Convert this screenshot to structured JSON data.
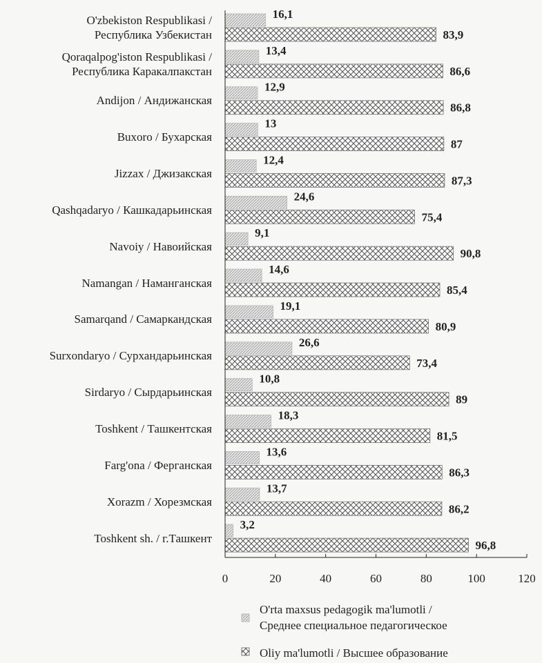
{
  "chart_data": {
    "type": "hbar",
    "categories": [
      "O'zbekiston Respublikasi /\nРеспублика Узбекистан",
      "Qoraqalpog'iston Respublikasi /\nРеспублика Каракалпакстан",
      "Andijon / Андижанская",
      "Buxoro / Бухарская",
      "Jizzax / Джизакская",
      "Qashqadaryo / Кашкадарьинская",
      "Navoiy / Навоийская",
      "Namangan / Наманганская",
      "Samarqand / Самаркандская",
      "Surxondaryo / Сурхандарьинская",
      "Sirdaryo / Сырдарьинская",
      "Toshkent / Ташкентская",
      "Farg'ona / Ферганская",
      "Xorazm / Хорезмская",
      "Toshkent sh. / г.Ташкент"
    ],
    "series": [
      {
        "name": "O'rta maxsus pedagogik ma'lumotli /\nСреднее специальное педагогическое",
        "color": "#b8b8b8",
        "values": [
          16.1,
          13.4,
          12.9,
          13,
          12.4,
          24.6,
          9.1,
          14.6,
          19.1,
          26.6,
          10.8,
          18.3,
          13.6,
          13.7,
          3.2
        ],
        "value_labels": [
          "16,1",
          "13,4",
          "12,9",
          "13",
          "12,4",
          "24,6",
          "9,1",
          "14,6",
          "19,1",
          "26,6",
          "10,8",
          "18,3",
          "13,6",
          "13,7",
          "3,2"
        ]
      },
      {
        "name": "Oliy ma'lumotli  /  Высшее образование",
        "color": "#777777",
        "values": [
          83.9,
          86.6,
          86.8,
          87,
          87.3,
          75.4,
          90.8,
          85.4,
          80.9,
          73.4,
          89,
          81.5,
          86.3,
          86.2,
          96.8
        ],
        "value_labels": [
          "83,9",
          "86,6",
          "86,8",
          "87",
          "87,3",
          "75,4",
          "90,8",
          "85,4",
          "80,9",
          "73,4",
          "89",
          "81,5",
          "86,3",
          "86,2",
          "96,8"
        ]
      }
    ],
    "xlim": [
      0,
      120
    ],
    "xticks": [
      0,
      20,
      40,
      60,
      80,
      100,
      120
    ]
  }
}
